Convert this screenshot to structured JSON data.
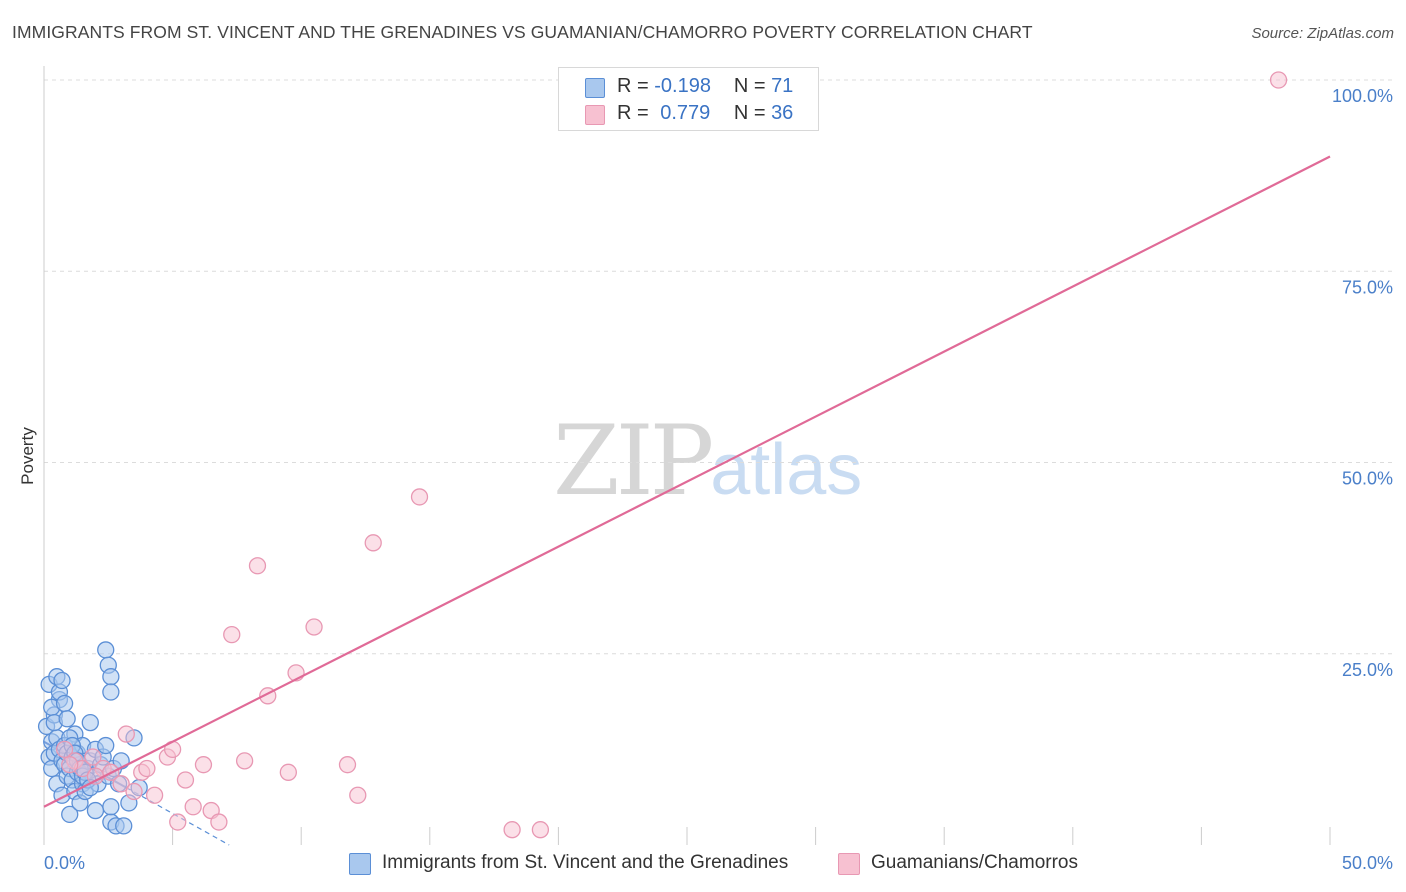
{
  "title": "IMMIGRANTS FROM ST. VINCENT AND THE GRENADINES VS GUAMANIAN/CHAMORRO POVERTY CORRELATION CHART",
  "source": "Source: ZipAtlas.com",
  "watermark": {
    "zip": "ZIP",
    "atlas": "atlas"
  },
  "legend": {
    "rows": [
      {
        "r_label": "R =",
        "r_value": "-0.198",
        "n_label": "N =",
        "n_value": "71"
      },
      {
        "r_label": "R =",
        "r_value": "0.779",
        "n_label": "N =",
        "n_value": "36"
      }
    ]
  },
  "colors": {
    "blue_fill": "#a9c8ee",
    "blue_stroke": "#5b8fd6",
    "blue_line": "#3d6fc7",
    "pink_fill": "#f7c1d1",
    "pink_stroke": "#e898b3",
    "pink_line": "#e06a97",
    "grid": "#dcdcdc",
    "axis_text": "#4a7fc9"
  },
  "chart_data": {
    "type": "scatter",
    "title": "IMMIGRANTS FROM ST. VINCENT AND THE GRENADINES VS GUAMANIAN/CHAMORRO POVERTY CORRELATION CHART",
    "xlabel": "",
    "ylabel": "Poverty",
    "xlim": [
      0,
      50
    ],
    "ylim": [
      0,
      100
    ],
    "x_tick_labels": [
      "0.0%",
      "50.0%"
    ],
    "y_ticks": [
      25,
      50,
      75,
      100
    ],
    "y_tick_labels": [
      "25.0%",
      "50.0%",
      "75.0%",
      "100.0%"
    ],
    "grid": true,
    "series": [
      {
        "name": "Immigrants from St. Vincent and the Grenadines",
        "color": "#5b8fd6",
        "R": -0.198,
        "N": 71,
        "points": [
          [
            0.1,
            15.5
          ],
          [
            0.2,
            11.5
          ],
          [
            0.3,
            13.5
          ],
          [
            0.3,
            10.0
          ],
          [
            0.4,
            12.0
          ],
          [
            0.4,
            17.0
          ],
          [
            0.5,
            14.0
          ],
          [
            0.5,
            8.0
          ],
          [
            0.6,
            19.0
          ],
          [
            0.6,
            12.5
          ],
          [
            0.7,
            11.0
          ],
          [
            0.7,
            6.5
          ],
          [
            0.8,
            10.5
          ],
          [
            0.8,
            13.0
          ],
          [
            0.9,
            9.0
          ],
          [
            0.9,
            12.0
          ],
          [
            1.0,
            4.0
          ],
          [
            1.0,
            10.0
          ],
          [
            1.1,
            8.5
          ],
          [
            1.1,
            11.5
          ],
          [
            1.2,
            14.5
          ],
          [
            1.2,
            7.0
          ],
          [
            1.3,
            9.5
          ],
          [
            1.3,
            12.0
          ],
          [
            1.4,
            5.5
          ],
          [
            1.4,
            10.5
          ],
          [
            1.5,
            8.0
          ],
          [
            1.5,
            13.0
          ],
          [
            1.6,
            7.0
          ],
          [
            1.7,
            10.0
          ],
          [
            1.8,
            16.0
          ],
          [
            1.8,
            11.0
          ],
          [
            1.9,
            9.0
          ],
          [
            2.0,
            12.5
          ],
          [
            2.0,
            4.5
          ],
          [
            2.1,
            8.0
          ],
          [
            2.2,
            10.5
          ],
          [
            2.3,
            11.5
          ],
          [
            2.4,
            13.0
          ],
          [
            2.5,
            9.0
          ],
          [
            2.6,
            3.0
          ],
          [
            2.7,
            10.0
          ],
          [
            2.8,
            2.5
          ],
          [
            2.9,
            8.0
          ],
          [
            3.0,
            11.0
          ],
          [
            3.1,
            2.5
          ],
          [
            3.5,
            14.0
          ],
          [
            3.7,
            7.5
          ],
          [
            0.2,
            21.0
          ],
          [
            0.3,
            18.0
          ],
          [
            0.4,
            16.0
          ],
          [
            0.5,
            22.0
          ],
          [
            0.6,
            20.0
          ],
          [
            0.7,
            21.5
          ],
          [
            0.8,
            18.5
          ],
          [
            0.9,
            16.5
          ],
          [
            1.0,
            14.0
          ],
          [
            1.1,
            13.0
          ],
          [
            1.2,
            12.0
          ],
          [
            1.3,
            11.0
          ],
          [
            1.4,
            10.0
          ],
          [
            1.5,
            9.0
          ],
          [
            1.6,
            9.5
          ],
          [
            1.7,
            8.5
          ],
          [
            1.8,
            7.5
          ],
          [
            2.4,
            25.5
          ],
          [
            2.5,
            23.5
          ],
          [
            2.6,
            22.0
          ],
          [
            2.6,
            20.0
          ],
          [
            3.3,
            5.5
          ],
          [
            2.6,
            5.0
          ]
        ],
        "trend_solid": [
          [
            0.0,
            13.5
          ],
          [
            3.2,
            7.5
          ]
        ],
        "trend_dashed": [
          [
            3.2,
            7.5
          ],
          [
            7.2,
            0.0
          ]
        ]
      },
      {
        "name": "Guamanians/Chamorros",
        "color": "#e898b3",
        "R": 0.779,
        "N": 36,
        "points": [
          [
            0.8,
            12.5
          ],
          [
            1.2,
            11.0
          ],
          [
            1.5,
            10.0
          ],
          [
            1.9,
            11.5
          ],
          [
            2.3,
            10.0
          ],
          [
            2.6,
            9.5
          ],
          [
            3.0,
            8.0
          ],
          [
            3.2,
            14.5
          ],
          [
            3.5,
            7.0
          ],
          [
            3.8,
            9.5
          ],
          [
            4.0,
            10.0
          ],
          [
            4.3,
            6.5
          ],
          [
            4.8,
            11.5
          ],
          [
            5.0,
            12.5
          ],
          [
            5.2,
            3.0
          ],
          [
            5.5,
            8.5
          ],
          [
            5.8,
            5.0
          ],
          [
            6.2,
            10.5
          ],
          [
            6.5,
            4.5
          ],
          [
            6.8,
            3.0
          ],
          [
            7.3,
            27.5
          ],
          [
            7.8,
            11.0
          ],
          [
            8.3,
            36.5
          ],
          [
            8.7,
            19.5
          ],
          [
            9.5,
            9.5
          ],
          [
            9.8,
            22.5
          ],
          [
            10.5,
            28.5
          ],
          [
            11.8,
            10.5
          ],
          [
            12.2,
            6.5
          ],
          [
            12.8,
            39.5
          ],
          [
            14.6,
            45.5
          ],
          [
            18.2,
            2.0
          ],
          [
            19.3,
            2.0
          ],
          [
            48.0,
            100.0
          ],
          [
            1.0,
            10.5
          ],
          [
            2.0,
            9.0
          ]
        ],
        "trend": [
          [
            0.0,
            5.0
          ],
          [
            50.0,
            90.0
          ]
        ]
      }
    ]
  },
  "bottom_legend": [
    {
      "label": "Immigrants from St. Vincent and the Grenadines"
    },
    {
      "label": "Guamanians/Chamorros"
    }
  ]
}
